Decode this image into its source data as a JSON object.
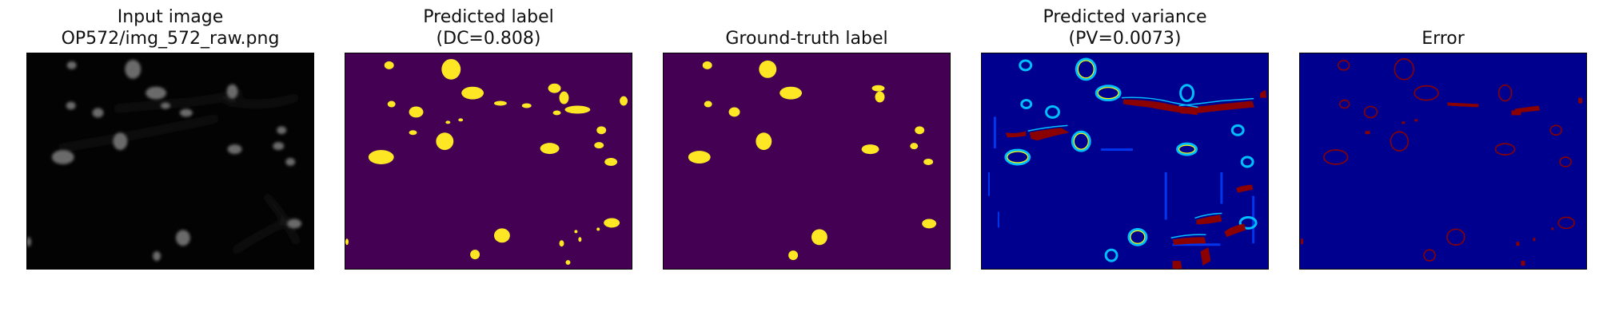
{
  "figure": {
    "panels": [
      {
        "id": "input-image",
        "title_line1": "Input image",
        "title_line2": "OP572/img_572_raw.png",
        "kind": "grayscale-microscopy"
      },
      {
        "id": "predicted-label",
        "title_line1": "Predicted label",
        "title_line2": "(DC=0.808)",
        "kind": "binary-mask",
        "colors": {
          "background": "#440154",
          "foreground": "#fde725"
        }
      },
      {
        "id": "ground-truth-label",
        "title_line1": "",
        "title_line2": "Ground-truth label",
        "kind": "binary-mask",
        "colors": {
          "background": "#440154",
          "foreground": "#fde725"
        }
      },
      {
        "id": "predicted-variance",
        "title_line1": "Predicted variance",
        "title_line2": "(PV=0.0073)",
        "kind": "jet-heatmap",
        "colors": {
          "low": "#00008f",
          "mid": "#00bfff",
          "high_mid": "#ffff00",
          "high": "#8b0000"
        }
      },
      {
        "id": "error",
        "title_line1": "",
        "title_line2": "Error",
        "kind": "error-map",
        "colors": {
          "background": "#00008f",
          "error": "#8b0000"
        }
      }
    ]
  }
}
